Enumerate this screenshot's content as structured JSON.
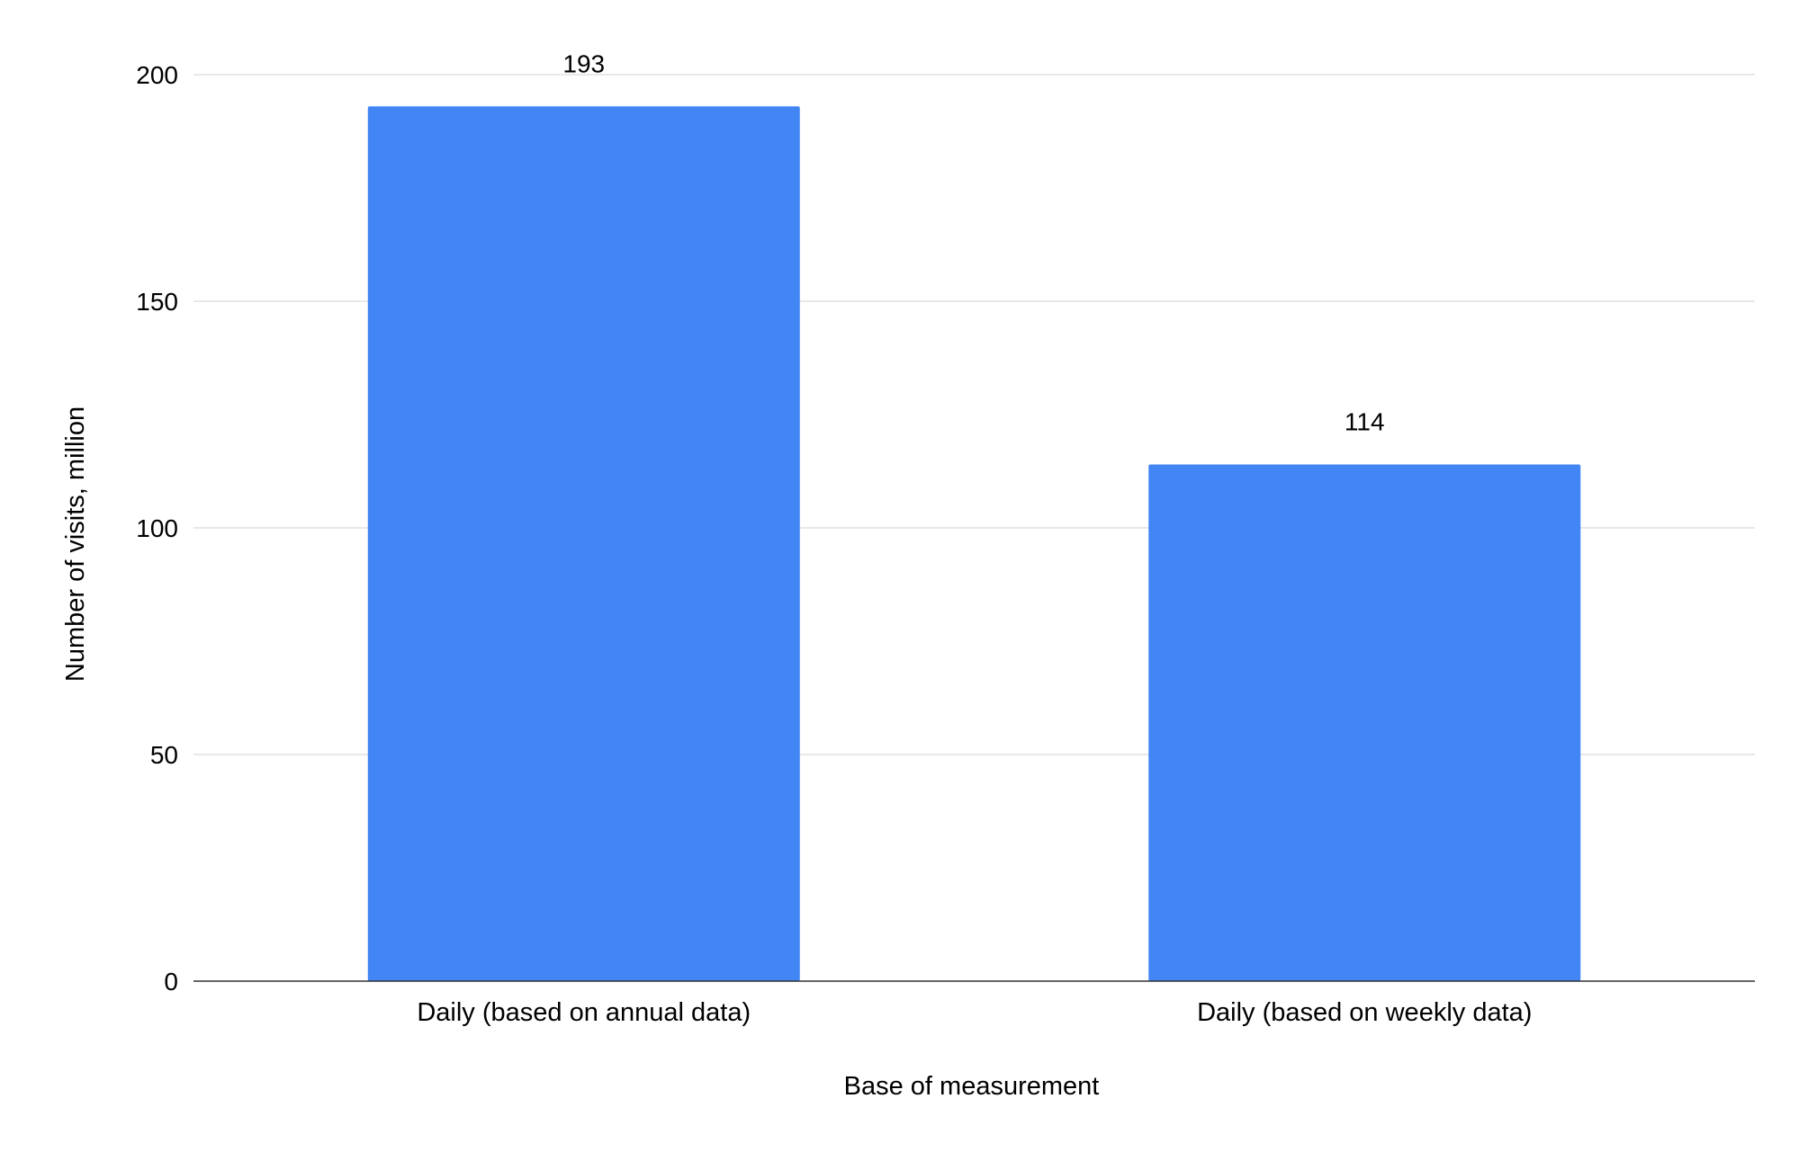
{
  "chart_data": {
    "type": "bar",
    "title": "",
    "xlabel": "Base of measurement",
    "ylabel": "Number of visits, million",
    "categories": [
      "Daily (based on annual data)",
      "Daily (based on weekly data)"
    ],
    "values": [
      193,
      114
    ],
    "data_labels": [
      "193",
      "114"
    ],
    "ylim": [
      0,
      200
    ],
    "yticks": [
      0,
      50,
      100,
      150,
      200
    ],
    "ytick_labels": [
      "0",
      "50",
      "100",
      "150",
      "200"
    ],
    "grid": true,
    "legend": "none",
    "bar_color": "#4285f4"
  }
}
